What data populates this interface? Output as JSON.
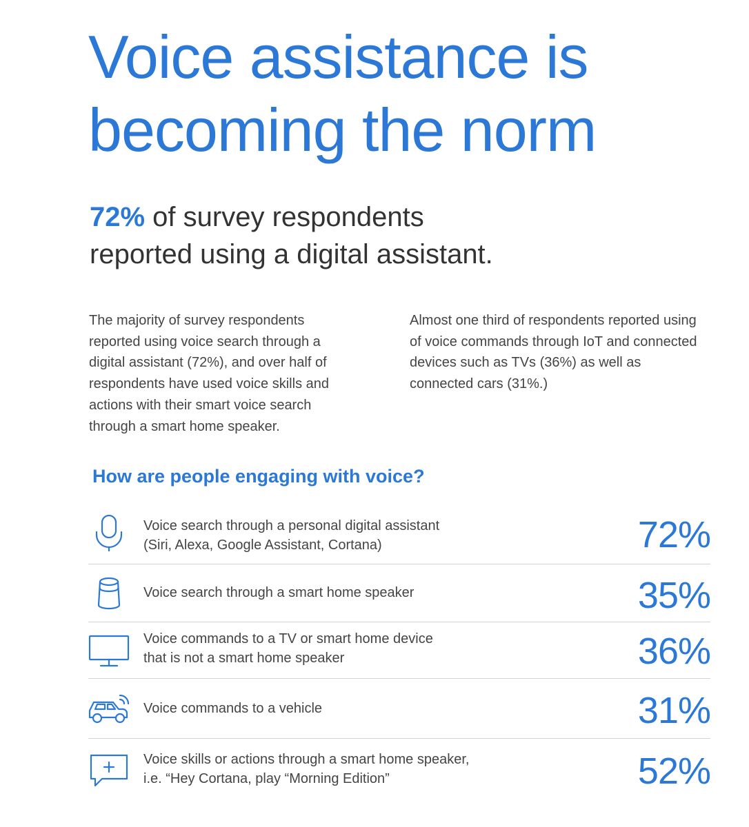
{
  "title": {
    "line1": "Voice assistance is",
    "line2": "becoming the norm"
  },
  "subtitle": {
    "highlight": "72%",
    "rest_line1": " of survey respondents",
    "line2": "reported using a digital assistant."
  },
  "paragraphs": {
    "left": "The majority of survey respondents reported using voice search through a digital assistant (72%), and over half of respondents have used voice skills and actions with their smart voice search through a smart home speaker.",
    "right": "Almost one third of respondents reported using of voice commands through IoT and connected devices such as TVs (36%) as well as connected cars (31%.)"
  },
  "section_heading": "How are people engaging with voice?",
  "stats": [
    {
      "icon": "microphone-icon",
      "label_line1": "Voice search through a personal digital assistant",
      "label_line2": "(Siri, Alexa, Google Assistant, Cortana)",
      "value": "72%"
    },
    {
      "icon": "smart-speaker-icon",
      "label_line1": "Voice search through a smart home speaker",
      "label_line2": "",
      "value": "35%"
    },
    {
      "icon": "tv-icon",
      "label_line1": "Voice commands to a TV or smart home device",
      "label_line2": "that is not a smart home speaker",
      "value": "36%"
    },
    {
      "icon": "connected-car-icon",
      "label_line1": "Voice commands to a vehicle",
      "label_line2": "",
      "value": "31%"
    },
    {
      "icon": "chat-plus-icon",
      "label_line1": "Voice skills or actions through a smart home speaker,",
      "label_line2": "i.e. “Hey Cortana, play “Morning Edition”",
      "value": "52%"
    }
  ],
  "colors": {
    "accent": "#2b78d6",
    "body_text": "#444444",
    "divider": "#d2d2d2"
  }
}
